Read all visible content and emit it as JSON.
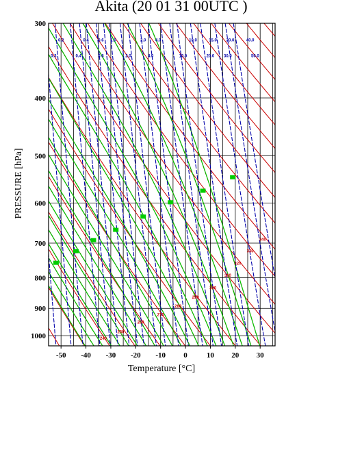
{
  "chart_data": {
    "type": "line",
    "title": "Akita (20 01 31 00UTC )",
    "xlabel": "Temperature  [°C]",
    "ylabel": "PRESSURE [hPa]",
    "xlim": [
      -55,
      36
    ],
    "ylim": [
      1040,
      300
    ],
    "y_scale": "log",
    "x_ticks": [
      -50,
      -40,
      -30,
      -20,
      -10,
      0,
      10,
      20,
      30
    ],
    "y_ticks": [
      300,
      400,
      500,
      600,
      700,
      800,
      900,
      1000
    ],
    "grid": true,
    "line_families": [
      {
        "name": "dry adiabats",
        "color": "#cc0000",
        "labels": [
          {
            "text": "240",
            "t": -33,
            "p": 1010
          },
          {
            "text": "250",
            "t": -26,
            "p": 985
          },
          {
            "text": "260",
            "t": -18,
            "p": 950
          },
          {
            "text": "270",
            "t": -10,
            "p": 922
          },
          {
            "text": "280",
            "t": -3,
            "p": 892
          },
          {
            "text": "290",
            "t": 4,
            "p": 862
          },
          {
            "text": "300",
            "t": 11,
            "p": 832
          },
          {
            "text": "310",
            "t": 17,
            "p": 792
          },
          {
            "text": "320",
            "t": 21,
            "p": 757
          },
          {
            "text": "330",
            "t": 26,
            "p": 722
          },
          {
            "text": "340",
            "t": 31,
            "p": 690
          }
        ]
      },
      {
        "name": "moist adiabats",
        "color": "#00cc00",
        "labels": [
          {
            "text": "",
            "t": -52,
            "p": 755
          },
          {
            "text": "",
            "t": -44,
            "p": 722
          },
          {
            "text": "",
            "t": -37,
            "p": 692
          },
          {
            "text": "",
            "t": -28,
            "p": 665
          },
          {
            "text": "",
            "t": -17,
            "p": 632
          },
          {
            "text": "",
            "t": -6,
            "p": 598
          },
          {
            "text": "",
            "t": 7,
            "p": 572
          },
          {
            "text": "",
            "t": 19,
            "p": 543
          }
        ]
      },
      {
        "name": "mixing ratio",
        "color": "#0000aa",
        "labels": [
          {
            "text": "0.2",
            "t": -50,
            "p": 320
          },
          {
            "text": "0.4",
            "t": -40,
            "p": 320
          },
          {
            "text": "0.6",
            "t": -34,
            "p": 320
          },
          {
            "text": "1.0",
            "t": -29,
            "p": 320
          },
          {
            "text": "2.0",
            "t": -17,
            "p": 320
          },
          {
            "text": "4.0",
            "t": -11,
            "p": 320
          },
          {
            "text": "10.0",
            "t": 3,
            "p": 320
          },
          {
            "text": "15.0",
            "t": 11,
            "p": 320
          },
          {
            "text": "20.0",
            "t": 18,
            "p": 320
          },
          {
            "text": "40.0",
            "t": 26,
            "p": 320
          },
          {
            "text": "0.3",
            "t": -53,
            "p": 340
          },
          {
            "text": "0.4",
            "t": -43,
            "p": 340
          },
          {
            "text": "0.8",
            "t": -34,
            "p": 340
          },
          {
            "text": "2.0",
            "t": -23,
            "p": 340
          },
          {
            "text": "4.0",
            "t": -14,
            "p": 340
          },
          {
            "text": "10.0",
            "t": -1,
            "p": 340
          },
          {
            "text": "20.0",
            "t": 10,
            "p": 340
          },
          {
            "text": "30.0",
            "t": 17,
            "p": 340
          },
          {
            "text": "50.0",
            "t": 28,
            "p": 340
          }
        ]
      }
    ]
  }
}
